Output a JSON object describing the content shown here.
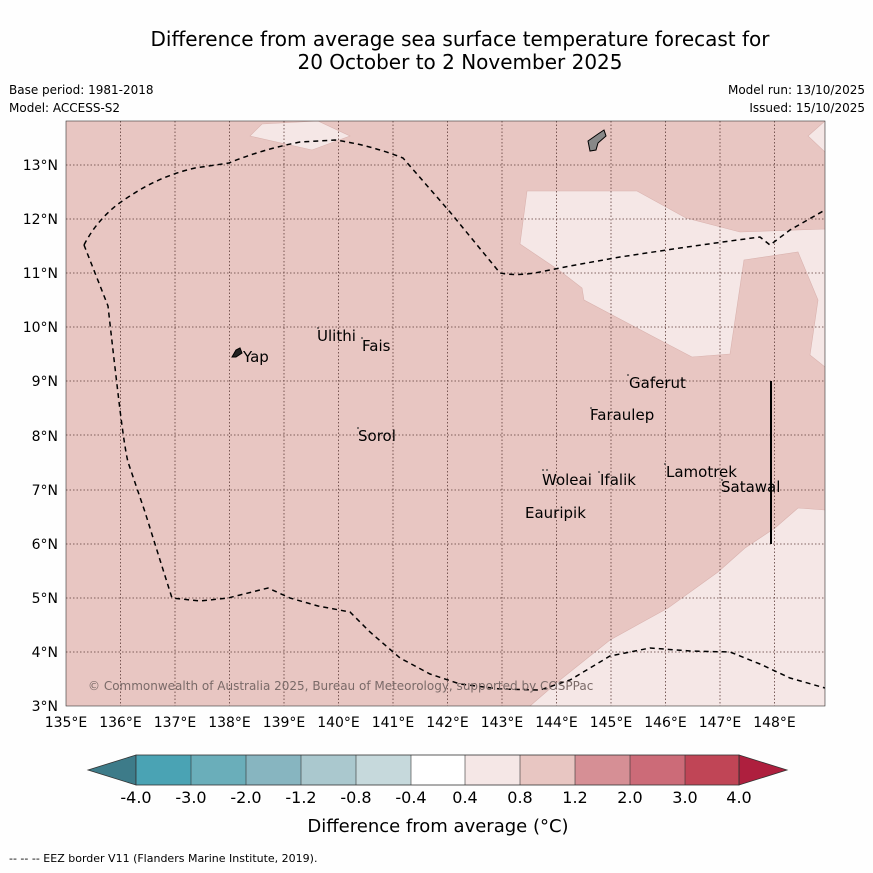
{
  "title": {
    "line1": "Difference from average sea surface temperature forecast for",
    "line2": "20 October to 2 November 2025"
  },
  "meta": {
    "base_period": "Base period: 1981-2018",
    "model": "Model: ACCESS-S2",
    "model_run": "Model run: 13/10/2025",
    "issued": "Issued: 15/10/2025"
  },
  "map": {
    "lon_ticks": [
      "135°E",
      "136°E",
      "137°E",
      "138°E",
      "139°E",
      "140°E",
      "141°E",
      "142°E",
      "143°E",
      "144°E",
      "145°E",
      "146°E",
      "147°E",
      "148°E"
    ],
    "lat_ticks": [
      "13°N",
      "12°N",
      "11°N",
      "10°N",
      "9°N",
      "8°N",
      "7°N",
      "6°N",
      "5°N",
      "4°N",
      "3°N"
    ],
    "places": [
      {
        "name": "Yap"
      },
      {
        "name": "Ulithi"
      },
      {
        "name": "Fais"
      },
      {
        "name": "Gaferut"
      },
      {
        "name": "Faraulep"
      },
      {
        "name": "Sorol"
      },
      {
        "name": "Lamotrek"
      },
      {
        "name": "Satawal"
      },
      {
        "name": "Woleai"
      },
      {
        "name": "Ifalik"
      },
      {
        "name": "Eauripik"
      }
    ],
    "copyright": "© Commonwealth of Australia 2025, Bureau of Meteorology, supported by COSPPac"
  },
  "colorbar": {
    "ticks": [
      "-4.0",
      "-3.0",
      "-2.0",
      "-1.2",
      "-0.8",
      "-0.4",
      "0.4",
      "0.8",
      "1.2",
      "2.0",
      "3.0",
      "4.0"
    ],
    "colors": [
      "#3d7b89",
      "#4aa3b4",
      "#6aaeba",
      "#87b5c0",
      "#aac8ce",
      "#c6d9dc",
      "#ffffff",
      "#f5e7e6",
      "#e8c6c2",
      "#d68f95",
      "#cc6b78",
      "#c04556",
      "#ae1f3e"
    ],
    "label": "Difference from average (°C)"
  },
  "footer": "--  --  -- EEZ border V11 (Flanders Marine Institute, 2019).",
  "legend_values": {
    "map_dominant_category": "0.8 to 1.2",
    "map_light_category": "0.4 to 0.8"
  }
}
